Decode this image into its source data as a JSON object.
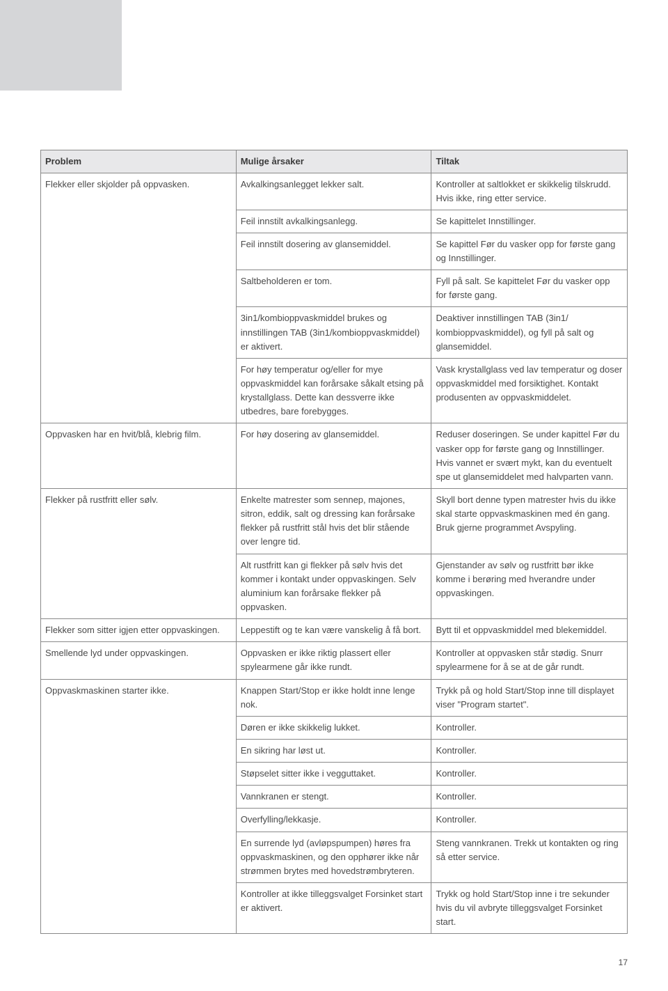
{
  "headers": {
    "problem": "Problem",
    "cause": "Mulige årsaker",
    "action": "Tiltak"
  },
  "rows": [
    {
      "problem": "Flekker eller skjolder på oppvasken.",
      "problemRowspan": 6,
      "cause": "Avkalkingsanlegget lekker salt.",
      "action": "Kontroller at saltlokket er skikkelig tilskrudd. Hvis ikke, ring etter service."
    },
    {
      "cause": "Feil innstilt avkalkingsanlegg.",
      "action": "Se kapittelet Innstillinger."
    },
    {
      "cause": "Feil innstilt dosering av glansemiddel.",
      "action": "Se kapittel Før du vasker opp for første gang og Innstillinger."
    },
    {
      "cause": "Saltbeholderen er tom.",
      "action": "Fyll på salt. Se kapittelet Før du vasker opp for første gang."
    },
    {
      "cause": "3in1/kombioppvaskmiddel brukes og innstillingen TAB (3in1/kombioppvaskmiddel) er aktivert.",
      "action": "Deaktiver innstillingen TAB (3in1/ kombioppvaskmiddel), og fyll på salt og glansemiddel."
    },
    {
      "cause": "For høy temperatur og/eller for mye oppvaskmiddel kan forårsake såkalt etsing på krystallglass. Dette kan dessverre ikke utbedres, bare forebygges.",
      "action": "Vask krystallglass ved lav temperatur og doser oppvaskmiddel med forsiktighet. Kontakt produsenten av oppvaskmiddelet."
    },
    {
      "problem": "Oppvasken har en hvit/blå, klebrig film.",
      "cause": "For høy dosering av glansemiddel.",
      "action": "Reduser doseringen. Se under kapittel Før du vasker opp for første gang og Innstillinger. Hvis vannet er svært mykt, kan du eventuelt spe ut glansemiddelet med halvparten vann."
    },
    {
      "problem": "Flekker på rustfritt eller sølv.",
      "problemRowspan": 2,
      "cause": "Enkelte matrester som sennep, majones, sitron, eddik, salt og dressing kan forårsake flekker på rustfritt stål hvis det blir stående over lengre tid.",
      "action": "Skyll bort denne typen matrester hvis du ikke skal starte oppvaskmaskinen med én gang. Bruk gjerne programmet Avspyling."
    },
    {
      "cause": "Alt rustfritt kan gi flekker på sølv hvis det kommer i kontakt under oppvaskingen. Selv aluminium kan forårsake flekker på oppvasken.",
      "action": "Gjenstander av sølv og rustfritt bør ikke komme i berøring med hverandre under oppvaskingen."
    },
    {
      "problem": "Flekker som sitter igjen etter oppvaskingen.",
      "cause": "Leppestift og te kan være vanskelig å få bort.",
      "action": "Bytt til et oppvaskmiddel med blekemiddel."
    },
    {
      "problem": "Smellende lyd under oppvaskingen.",
      "cause": "Oppvasken er ikke riktig plassert eller spylearmene går ikke rundt.",
      "action": "Kontroller at oppvasken står stødig. Snurr spylearmene for å se at de går rundt."
    },
    {
      "problem": "Oppvaskmaskinen starter ikke.",
      "problemRowspan": 8,
      "cause": "Knappen Start/Stop er ikke holdt inne lenge nok.",
      "action": "Trykk på og hold Start/Stop inne till displayet viser \"Program startet\"."
    },
    {
      "cause": "Døren er ikke skikkelig lukket.",
      "action": "Kontroller."
    },
    {
      "cause": "En sikring har løst ut.",
      "action": "Kontroller."
    },
    {
      "cause": "Støpselet sitter ikke i vegguttaket.",
      "action": "Kontroller."
    },
    {
      "cause": "Vannkranen er stengt.",
      "action": "Kontroller."
    },
    {
      "cause": "Overfylling/lekkasje.",
      "action": "Kontroller."
    },
    {
      "cause": "En surrende lyd (avløpspumpen) høres fra oppvaskmaskinen, og den opphører ikke når strømmen brytes med hovedstrømbryteren.",
      "action": "Steng vannkranen. Trekk ut kontakten og ring så etter service."
    },
    {
      "cause": "Kontroller at ikke tilleggsvalget Forsinket start er aktivert.",
      "action": "Trykk og hold Start/Stop inne i tre sekunder hvis du vil avbryte tilleggsvalget Forsinket start."
    }
  ],
  "pageNumber": "17"
}
